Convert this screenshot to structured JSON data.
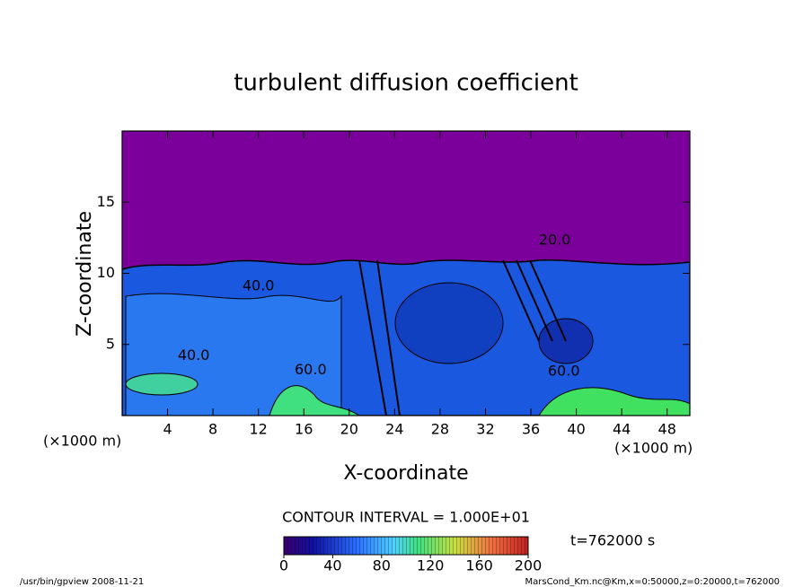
{
  "chart_data": {
    "type": "contour",
    "title": "turbulent diffusion coefficient",
    "x_label": "X-coordinate",
    "y_label": "Z-coordinate",
    "x_unit": "(×1000 m)",
    "y_unit": "(×1000 m)",
    "xlim": [
      0,
      50
    ],
    "ylim": [
      0,
      20
    ],
    "xticks": [
      4,
      8,
      12,
      16,
      20,
      24,
      28,
      32,
      36,
      40,
      44,
      48
    ],
    "yticks": [
      5,
      10,
      15
    ],
    "contour_interval": "CONTOUR INTERVAL = 1.000E+01",
    "colorbar_lim": [
      0,
      200
    ],
    "colorbar_ticks": [
      0,
      40,
      80,
      120,
      160,
      200
    ],
    "time_label": "t=762000 s",
    "contour_labels": [
      {
        "text": "40.0",
        "x": 12.0,
        "y": 9.1
      },
      {
        "text": "40.0",
        "x": 6.3,
        "y": 4.2
      },
      {
        "text": "60.0",
        "x": 16.6,
        "y": 3.2
      },
      {
        "text": "60.0",
        "x": 38.9,
        "y": 3.1
      },
      {
        "text": "20.0",
        "x": 38.1,
        "y": 12.3
      }
    ],
    "footer_left": "/usr/bin/gpview   2008-11-21",
    "footer_right": "MarsCond_Km.nc@Km,x=0:50000,z=0:20000,t=762000"
  }
}
